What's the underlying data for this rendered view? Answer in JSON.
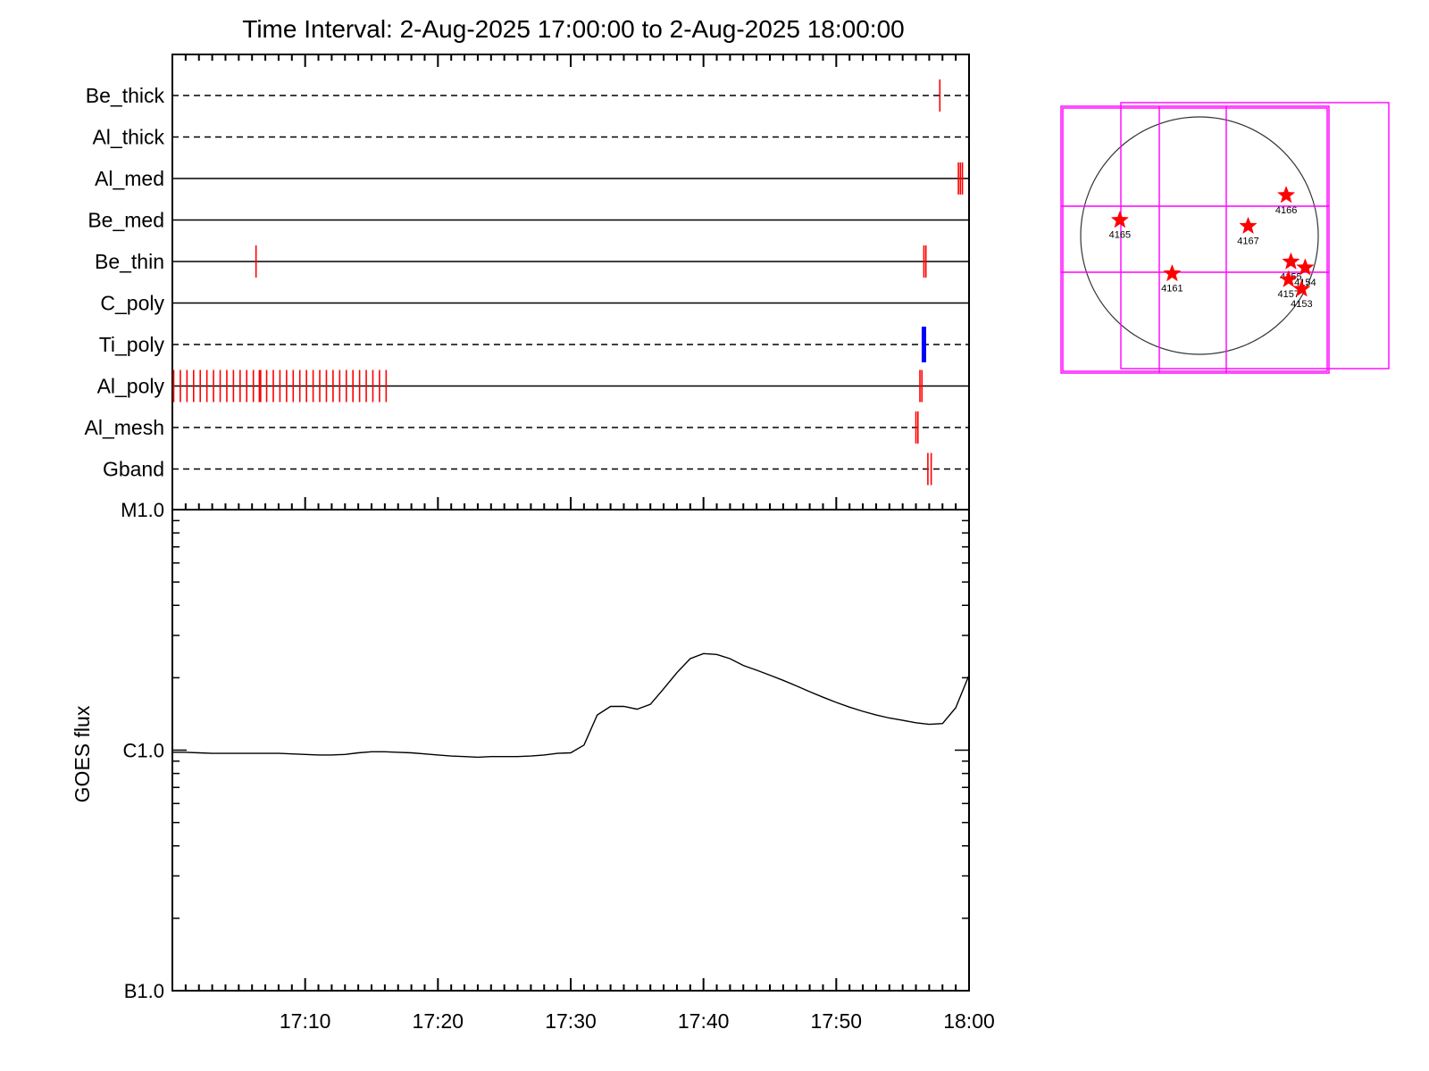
{
  "title": "Time Interval:  2-Aug-2025 17:00:00 to  2-Aug-2025 18:00:00",
  "colors": {
    "exposure": "#ff0000",
    "highlight": "#0000ff",
    "fov": "#ff00ff",
    "star": "#ff0000",
    "axis": "#000000"
  },
  "chart_data": [
    {
      "type": "timeline",
      "time_range_minutes": [
        0,
        60
      ],
      "rows": [
        {
          "name": "Be_thick",
          "line": "dashed",
          "marks_min": [
            57.8
          ]
        },
        {
          "name": "Al_thick",
          "line": "dashed",
          "marks_min": []
        },
        {
          "name": "Al_med",
          "line": "solid",
          "marks_min": [
            59.2,
            59.35,
            59.5
          ]
        },
        {
          "name": "Be_med",
          "line": "solid",
          "marks_min": []
        },
        {
          "name": "Be_thin",
          "line": "solid",
          "marks_min": [
            6.3,
            56.6,
            56.75
          ]
        },
        {
          "name": "C_poly",
          "line": "solid",
          "marks_min": []
        },
        {
          "name": "Ti_poly",
          "line": "dashed",
          "marks_min": [],
          "highlight_min": [
            56.6
          ]
        },
        {
          "name": "Al_poly",
          "line": "solid",
          "marks_min": [
            0.1,
            0.6,
            1.1,
            1.6,
            2.1,
            2.6,
            3.1,
            3.6,
            4.1,
            4.6,
            5.1,
            5.6,
            6.1,
            6.6,
            7.1,
            7.6,
            8.1,
            8.6,
            9.1,
            9.6,
            10.1,
            10.6,
            11.1,
            11.6,
            12.1,
            12.6,
            13.1,
            13.6,
            14.1,
            14.6,
            15.1,
            15.6,
            16.1,
            56.3,
            56.45
          ],
          "thick_min": [
            6.6
          ]
        },
        {
          "name": "Al_mesh",
          "line": "dashed",
          "marks_min": [
            56.0,
            56.15
          ]
        },
        {
          "name": "Gband",
          "line": "dashed",
          "marks_min": [
            56.9,
            57.15
          ]
        }
      ]
    },
    {
      "type": "line",
      "ylabel": "GOES flux",
      "log_scale": true,
      "ylim": [
        1e-07,
        1e-05
      ],
      "yticks": [
        {
          "value": 1e-05,
          "label": "M1.0"
        },
        {
          "value": 1e-06,
          "label": "C1.0"
        },
        {
          "value": 1e-07,
          "label": "B1.0"
        }
      ],
      "xticks": [
        "17:10",
        "17:20",
        "17:30",
        "17:40",
        "17:50",
        "18:00"
      ],
      "xtick_minutes": [
        10,
        20,
        30,
        40,
        50,
        60
      ],
      "x_minutes": [
        0,
        1,
        2,
        3,
        4,
        5,
        6,
        7,
        8,
        9,
        10,
        11,
        12,
        13,
        14,
        15,
        16,
        17,
        18,
        19,
        20,
        21,
        22,
        23,
        24,
        25,
        26,
        27,
        28,
        29,
        30,
        31,
        32,
        33,
        34,
        35,
        36,
        37,
        38,
        39,
        40,
        41,
        42,
        43,
        44,
        45,
        46,
        47,
        48,
        49,
        50,
        51,
        52,
        53,
        54,
        55,
        56,
        57,
        58,
        59,
        60
      ],
      "y_flux": [
        9.8e-07,
        9.8e-07,
        9.75e-07,
        9.7e-07,
        9.7e-07,
        9.7e-07,
        9.7e-07,
        9.7e-07,
        9.7e-07,
        9.65e-07,
        9.6e-07,
        9.55e-07,
        9.55e-07,
        9.6e-07,
        9.75e-07,
        9.85e-07,
        9.85e-07,
        9.8e-07,
        9.75e-07,
        9.65e-07,
        9.55e-07,
        9.45e-07,
        9.4e-07,
        9.35e-07,
        9.4e-07,
        9.4e-07,
        9.4e-07,
        9.45e-07,
        9.55e-07,
        9.7e-07,
        9.75e-07,
        1.05e-06,
        1.4e-06,
        1.52e-06,
        1.52e-06,
        1.48e-06,
        1.55e-06,
        1.8e-06,
        2.1e-06,
        2.4e-06,
        2.52e-06,
        2.5e-06,
        2.4e-06,
        2.25e-06,
        2.15e-06,
        2.05e-06,
        1.95e-06,
        1.85e-06,
        1.75e-06,
        1.66e-06,
        1.58e-06,
        1.51e-06,
        1.45e-06,
        1.4e-06,
        1.36e-06,
        1.33e-06,
        1.3e-06,
        1.28e-06,
        1.29e-06,
        1.5e-06,
        2.05e-06
      ]
    },
    {
      "type": "scatter",
      "markers": [
        {
          "label": "4165",
          "x": -0.67,
          "y": 0.13
        },
        {
          "label": "4166",
          "x": 0.73,
          "y": 0.34
        },
        {
          "label": "4167",
          "x": 0.41,
          "y": 0.08
        },
        {
          "label": "4161",
          "x": -0.23,
          "y": -0.32
        },
        {
          "label": "4155",
          "x": 0.77,
          "y": -0.22
        },
        {
          "label": "4154",
          "x": 0.89,
          "y": -0.27
        },
        {
          "label": "4157",
          "x": 0.75,
          "y": -0.37
        },
        {
          "label": "4153",
          "x": 0.86,
          "y": -0.45
        }
      ]
    }
  ]
}
